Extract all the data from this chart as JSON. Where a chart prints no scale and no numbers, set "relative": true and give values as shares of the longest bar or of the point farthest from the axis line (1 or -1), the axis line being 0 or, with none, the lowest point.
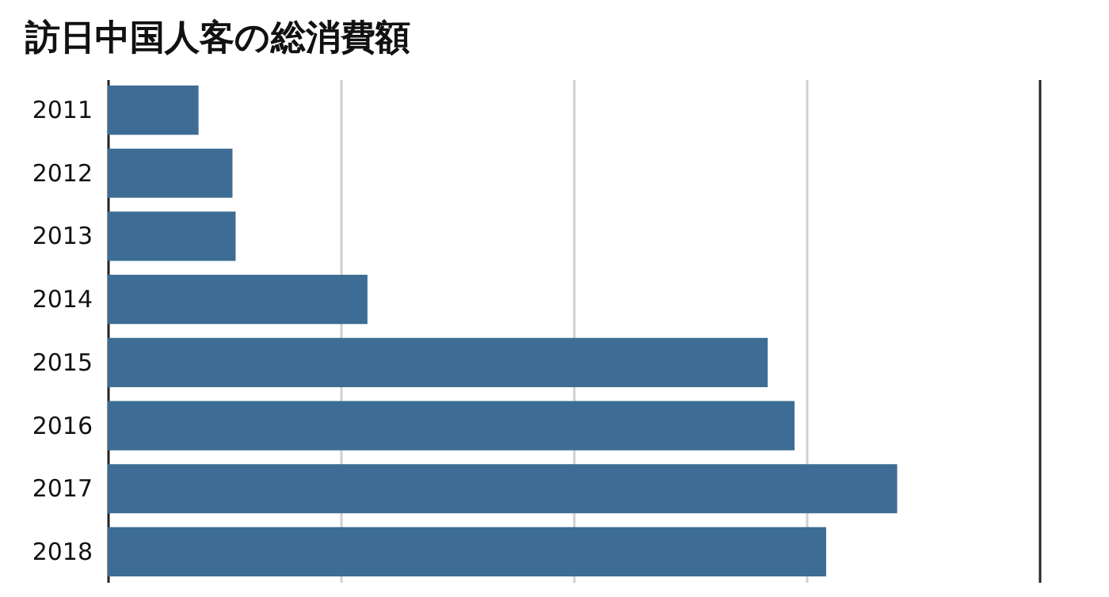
{
  "chart_data": {
    "type": "bar",
    "orientation": "horizontal",
    "relative": true,
    "title": "訪日中国人客の総消費額",
    "categories": [
      "2011",
      "2012",
      "2013",
      "2014",
      "2015",
      "2016",
      "2017",
      "2018"
    ],
    "values": [
      0.115,
      0.158,
      0.162,
      0.329,
      0.836,
      0.87,
      1,
      0.91
    ],
    "color": "#3d6d94",
    "grid": "x"
  }
}
